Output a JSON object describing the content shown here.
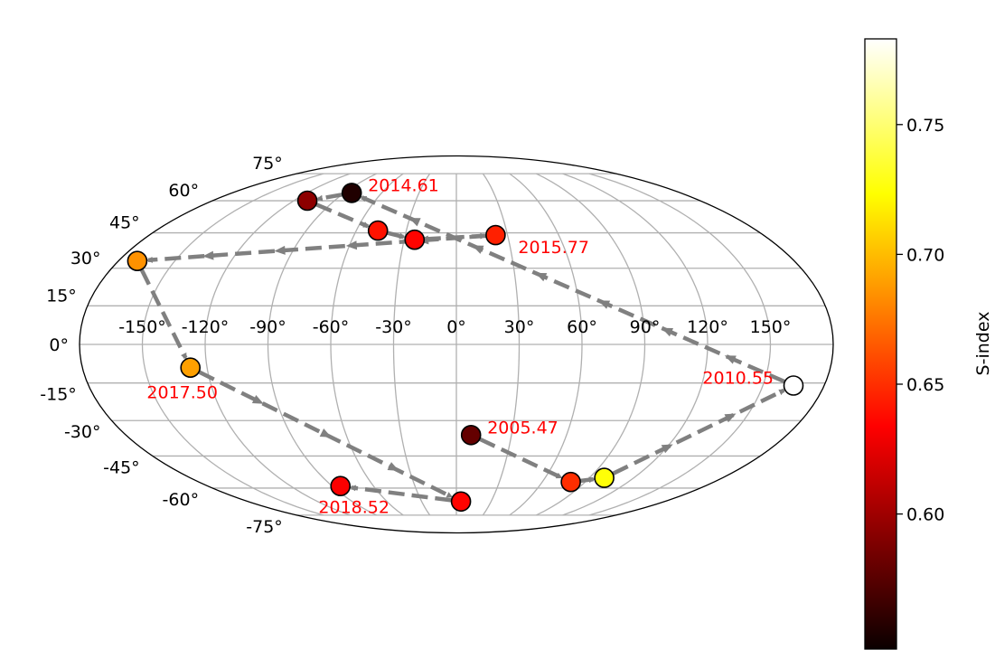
{
  "chart_data": {
    "type": "scatter",
    "projection": "mollweide",
    "grid": true,
    "lon_ticks": [
      "-150°",
      "-120°",
      "-90°",
      "-60°",
      "-30°",
      "0°",
      "30°",
      "60°",
      "90°",
      "120°",
      "150°"
    ],
    "lat_ticks": [
      "-75°",
      "-60°",
      "-45°",
      "-30°",
      "-15°",
      "0°",
      "15°",
      "30°",
      "45°",
      "60°",
      "75°"
    ],
    "points": [
      {
        "lon": 8,
        "lat": -36,
        "s": 0.575
      },
      {
        "lon": 80,
        "lat": -57,
        "s": 0.65
      },
      {
        "lon": 100,
        "lat": -55,
        "s": 0.725
      },
      {
        "lon": 165,
        "lat": -16,
        "s": 0.79
      },
      {
        "lon": -84,
        "lat": 64,
        "s": 0.55
      },
      {
        "lon": -110,
        "lat": 60,
        "s": 0.59
      },
      {
        "lon": -47,
        "lat": 46,
        "s": 0.64
      },
      {
        "lon": -24,
        "lat": 42,
        "s": 0.635
      },
      {
        "lon": 23,
        "lat": 44,
        "s": 0.645
      },
      {
        "lon": -170,
        "lat": 33,
        "s": 0.685
      },
      {
        "lon": -128,
        "lat": -9,
        "s": 0.69
      },
      {
        "lon": 4,
        "lat": -67,
        "s": 0.635
      },
      {
        "lon": -84,
        "lat": -59,
        "s": 0.63
      }
    ],
    "path_order": [
      0,
      1,
      2,
      3,
      4,
      5,
      6,
      7,
      8,
      9,
      10,
      11,
      12
    ],
    "annotations": [
      {
        "text": "2005.47",
        "point": 0,
        "anchor": "start"
      },
      {
        "text": "2010.55",
        "point": 3,
        "anchor": "end"
      },
      {
        "text": "2014.61",
        "point": 4,
        "anchor": "start"
      },
      {
        "text": "2015.77",
        "point": 8,
        "anchor": "start"
      },
      {
        "text": "2017.50",
        "point": 10,
        "anchor": "middle"
      },
      {
        "text": "2018.52",
        "point": 12,
        "anchor": "middle"
      }
    ],
    "annotation_color": "#ff0000",
    "path_color": "#808080",
    "colorbar": {
      "label": "S-index",
      "colormap": "hot",
      "vmin": 0.548,
      "vmax": 0.783,
      "ticks": [
        "0.60",
        "0.65",
        "0.70",
        "0.75"
      ],
      "tick_values": [
        0.6,
        0.65,
        0.7,
        0.75
      ]
    }
  }
}
